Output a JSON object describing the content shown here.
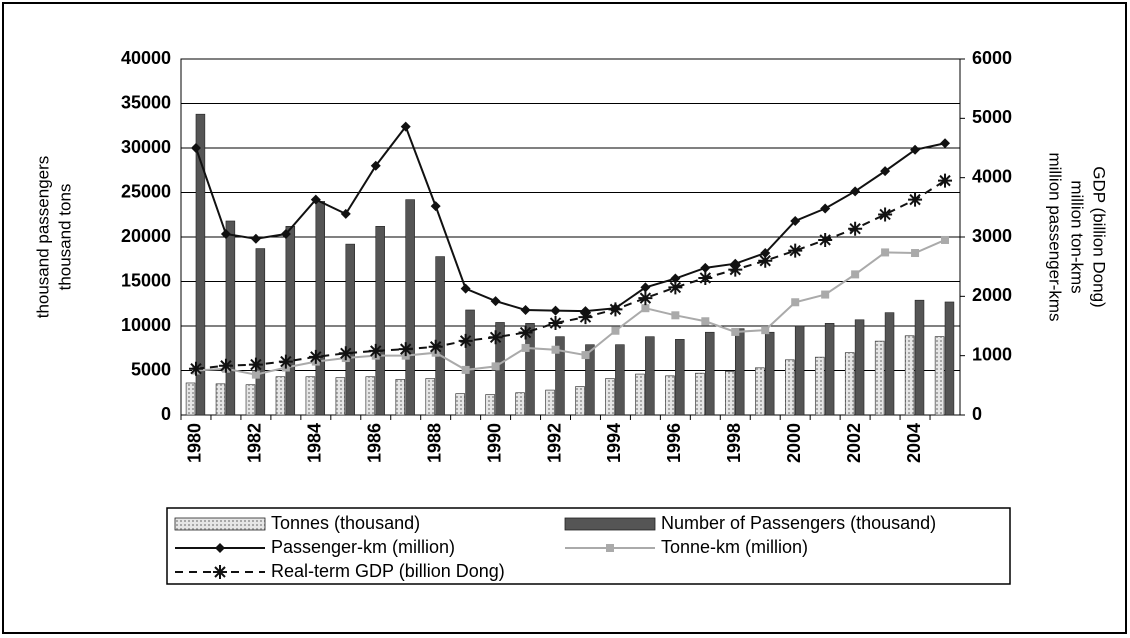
{
  "chart_data": {
    "type": "bar",
    "y_label": [
      "thousand passengers",
      "thousand tons"
    ],
    "y2_label": [
      "million passenger-kms",
      "million ton-kms",
      "GDP (billion Dong)"
    ],
    "categories": [
      "1980",
      null,
      "1982",
      null,
      "1984",
      null,
      "1986",
      null,
      "1988",
      null,
      "1990",
      null,
      "1992",
      null,
      "1994",
      null,
      "1996",
      null,
      "1998",
      null,
      "2000",
      null,
      "2002",
      null,
      "2004",
      null
    ],
    "ylim": [
      0,
      40000
    ],
    "yticks": [
      0,
      5000,
      10000,
      15000,
      20000,
      25000,
      30000,
      35000,
      40000
    ],
    "y2lim": [
      0,
      6000
    ],
    "y2ticks": [
      0,
      1000,
      2000,
      3000,
      4000,
      5000,
      6000
    ],
    "grid": true,
    "legend": "bottom",
    "series": [
      {
        "name": "Tonnes (thousand)",
        "type": "bar",
        "color": "#d9d9d9",
        "pattern": "hatch",
        "values": [
          3600,
          3500,
          3400,
          4300,
          4300,
          4200,
          4300,
          4000,
          4100,
          2400,
          2300,
          2500,
          2800,
          3200,
          4100,
          4600,
          4400,
          4700,
          4900,
          5300,
          6200,
          6500,
          7000,
          8300,
          8900,
          8800
        ]
      },
      {
        "name": "Number of Passengers (thousand)",
        "type": "bar",
        "color": "#555555",
        "values": [
          33800,
          21800,
          18700,
          21200,
          24000,
          19200,
          21200,
          24200,
          17800,
          11800,
          10400,
          10300,
          8800,
          7900,
          7900,
          8800,
          8500,
          9300,
          9700,
          9300,
          10000,
          10300,
          10700,
          11500,
          12900,
          12700
        ]
      },
      {
        "name": "Passenger-km (million)",
        "type": "line",
        "axis": "y2",
        "color": "#111111",
        "marker": "diamond",
        "values": [
          4500,
          3050,
          2970,
          3050,
          3630,
          3390,
          4200,
          4860,
          3520,
          2130,
          1920,
          1770,
          1760,
          1750,
          1800,
          2150,
          2300,
          2480,
          2550,
          2730,
          3270,
          3480,
          3770,
          4110,
          4470,
          4580
        ]
      },
      {
        "name": "Tonne-km (million)",
        "type": "line",
        "axis": "y2",
        "color": "#aaaaaa",
        "marker": "square",
        "values": [
          750,
          780,
          680,
          800,
          900,
          960,
          1000,
          1000,
          1050,
          760,
          820,
          1130,
          1100,
          1010,
          1420,
          1800,
          1680,
          1580,
          1400,
          1430,
          1900,
          2030,
          2370,
          2740,
          2730,
          2950
        ]
      },
      {
        "name": "Real-term GDP (billion Dong)",
        "type": "line",
        "axis": "y2",
        "color": "#111111",
        "marker": "asterisk",
        "dash": true,
        "values": [
          780,
          830,
          850,
          900,
          980,
          1040,
          1080,
          1110,
          1150,
          1250,
          1310,
          1390,
          1550,
          1650,
          1780,
          1970,
          2150,
          2310,
          2450,
          2600,
          2770,
          2950,
          3140,
          3380,
          3630,
          3950
        ]
      }
    ]
  }
}
